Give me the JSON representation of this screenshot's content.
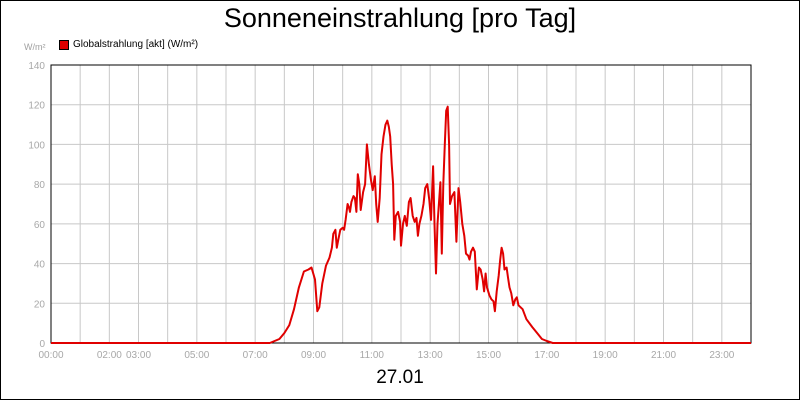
{
  "title": "Sonneneinstrahlung [pro Tag]",
  "y_unit": "W/m²",
  "legend_label": "Globalstrahlung [akt] (W/m²)",
  "date_label": "27.01",
  "colors": {
    "series": "#e00000",
    "grid": "#c8c8c8",
    "tick_text": "#a8a8a8"
  },
  "chart_data": {
    "type": "line",
    "title": "Sonneneinstrahlung [pro Tag]",
    "xlabel": "27.01",
    "ylabel": "W/m²",
    "ylim": [
      0,
      140
    ],
    "xlim": [
      0,
      24
    ],
    "grid": true,
    "legend_position": "top-left",
    "y_ticks": [
      0,
      20,
      40,
      60,
      80,
      100,
      120,
      140
    ],
    "x_ticks": [
      {
        "x": 0,
        "label": "00:00"
      },
      {
        "x": 2,
        "label": "02:00"
      },
      {
        "x": 3,
        "label": "03:00"
      },
      {
        "x": 5,
        "label": "05:00"
      },
      {
        "x": 7,
        "label": "07:00"
      },
      {
        "x": 9,
        "label": "09:00"
      },
      {
        "x": 11,
        "label": "11:00"
      },
      {
        "x": 13,
        "label": "13:00"
      },
      {
        "x": 15,
        "label": "15:00"
      },
      {
        "x": 17,
        "label": "17:00"
      },
      {
        "x": 19,
        "label": "19:00"
      },
      {
        "x": 21,
        "label": "21:00"
      },
      {
        "x": 23,
        "label": "23:00"
      }
    ],
    "vgrid_x": [
      0,
      1,
      2,
      3,
      4,
      5,
      6,
      7,
      8,
      9,
      10,
      11,
      12,
      13,
      14,
      15,
      16,
      17,
      18,
      19,
      20,
      21,
      22,
      23
    ],
    "series": [
      {
        "name": "Globalstrahlung [akt] (W/m²)",
        "color": "#e00000",
        "points": [
          [
            0,
            0
          ],
          [
            7.5,
            0
          ],
          [
            7.83,
            2
          ],
          [
            8.0,
            5
          ],
          [
            8.17,
            9
          ],
          [
            8.33,
            17
          ],
          [
            8.5,
            28
          ],
          [
            8.67,
            36
          ],
          [
            8.83,
            37
          ],
          [
            8.93,
            38
          ],
          [
            9.05,
            32
          ],
          [
            9.13,
            16
          ],
          [
            9.2,
            18
          ],
          [
            9.3,
            30
          ],
          [
            9.43,
            39
          ],
          [
            9.55,
            43
          ],
          [
            9.63,
            48
          ],
          [
            9.68,
            55
          ],
          [
            9.75,
            57
          ],
          [
            9.8,
            48
          ],
          [
            9.85,
            52
          ],
          [
            9.92,
            57
          ],
          [
            10.0,
            58
          ],
          [
            10.05,
            57
          ],
          [
            10.1,
            62
          ],
          [
            10.17,
            70
          ],
          [
            10.22,
            68
          ],
          [
            10.25,
            66
          ],
          [
            10.3,
            71
          ],
          [
            10.37,
            74
          ],
          [
            10.42,
            73
          ],
          [
            10.47,
            66
          ],
          [
            10.52,
            85
          ],
          [
            10.57,
            80
          ],
          [
            10.62,
            67
          ],
          [
            10.7,
            76
          ],
          [
            10.77,
            80
          ],
          [
            10.83,
            100
          ],
          [
            10.9,
            90
          ],
          [
            10.97,
            82
          ],
          [
            11.03,
            77
          ],
          [
            11.1,
            84
          ],
          [
            11.15,
            70
          ],
          [
            11.2,
            61
          ],
          [
            11.27,
            73
          ],
          [
            11.33,
            95
          ],
          [
            11.4,
            104
          ],
          [
            11.47,
            110
          ],
          [
            11.53,
            112
          ],
          [
            11.58,
            109
          ],
          [
            11.63,
            104
          ],
          [
            11.68,
            90
          ],
          [
            11.73,
            80
          ],
          [
            11.77,
            52
          ],
          [
            11.82,
            64
          ],
          [
            11.9,
            66
          ],
          [
            11.97,
            61
          ],
          [
            12.0,
            49
          ],
          [
            12.07,
            60
          ],
          [
            12.13,
            64
          ],
          [
            12.2,
            59
          ],
          [
            12.27,
            71
          ],
          [
            12.33,
            73
          ],
          [
            12.4,
            64
          ],
          [
            12.47,
            61
          ],
          [
            12.53,
            63
          ],
          [
            12.58,
            54
          ],
          [
            12.63,
            60
          ],
          [
            12.7,
            64
          ],
          [
            12.77,
            70
          ],
          [
            12.83,
            78
          ],
          [
            12.9,
            80
          ],
          [
            12.97,
            72
          ],
          [
            13.03,
            62
          ],
          [
            13.1,
            89
          ],
          [
            13.15,
            60
          ],
          [
            13.2,
            35
          ],
          [
            13.25,
            60
          ],
          [
            13.3,
            70
          ],
          [
            13.35,
            81
          ],
          [
            13.4,
            45
          ],
          [
            13.45,
            80
          ],
          [
            13.5,
            100
          ],
          [
            13.55,
            117
          ],
          [
            13.6,
            119
          ],
          [
            13.65,
            100
          ],
          [
            13.68,
            70
          ],
          [
            13.75,
            74
          ],
          [
            13.83,
            76
          ],
          [
            13.9,
            51
          ],
          [
            13.97,
            78
          ],
          [
            14.03,
            71
          ],
          [
            14.1,
            60
          ],
          [
            14.17,
            54
          ],
          [
            14.23,
            45
          ],
          [
            14.3,
            44
          ],
          [
            14.35,
            42
          ],
          [
            14.4,
            46
          ],
          [
            14.47,
            48
          ],
          [
            14.53,
            46
          ],
          [
            14.6,
            27
          ],
          [
            14.67,
            38
          ],
          [
            14.73,
            37
          ],
          [
            14.8,
            32
          ],
          [
            14.85,
            26
          ],
          [
            14.9,
            35
          ],
          [
            14.95,
            28
          ],
          [
            15.03,
            24
          ],
          [
            15.1,
            22
          ],
          [
            15.17,
            21
          ],
          [
            15.22,
            16
          ],
          [
            15.28,
            26
          ],
          [
            15.35,
            34
          ],
          [
            15.4,
            42
          ],
          [
            15.45,
            48
          ],
          [
            15.5,
            45
          ],
          [
            15.55,
            37
          ],
          [
            15.62,
            38
          ],
          [
            15.67,
            33
          ],
          [
            15.72,
            28
          ],
          [
            15.78,
            25
          ],
          [
            15.85,
            19
          ],
          [
            15.92,
            22
          ],
          [
            15.97,
            23
          ],
          [
            16.03,
            19
          ],
          [
            16.17,
            17
          ],
          [
            16.3,
            12
          ],
          [
            16.5,
            8
          ],
          [
            16.67,
            5
          ],
          [
            16.83,
            2
          ],
          [
            17.0,
            1
          ],
          [
            17.2,
            0
          ],
          [
            24,
            0
          ]
        ]
      }
    ]
  }
}
